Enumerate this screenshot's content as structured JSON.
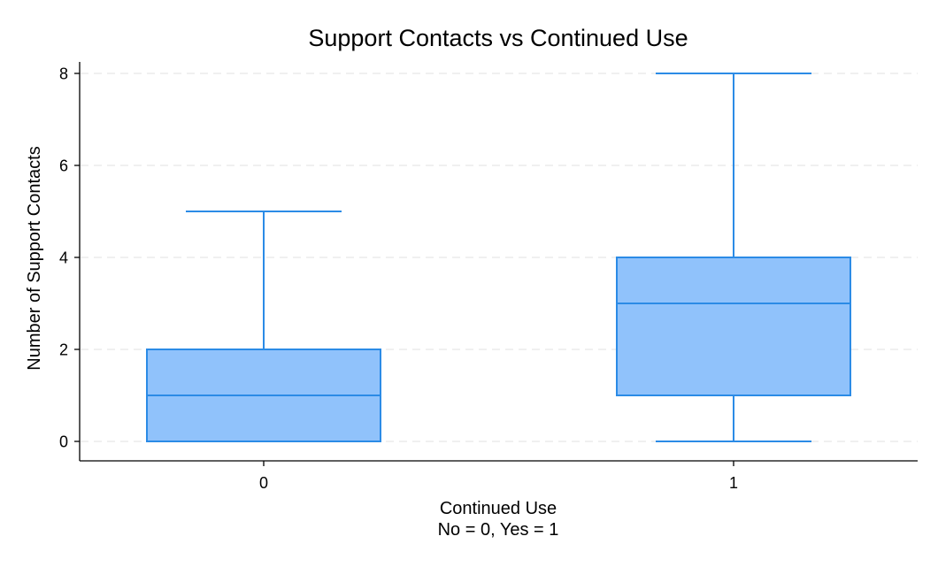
{
  "chart_data": {
    "type": "boxplot",
    "title": "Support Contacts vs Continued Use",
    "xlabel": "Continued Use",
    "xlabel_note": "No = 0, Yes = 1",
    "ylabel": "Number of Support Contacts",
    "ylim": [
      -0.4,
      8.2
    ],
    "yticks": [
      0,
      2,
      4,
      6,
      8
    ],
    "grid": true,
    "categories": [
      "0",
      "1"
    ],
    "boxes": [
      {
        "category": "0",
        "whisker_low": 0,
        "q1": 0,
        "median": 1,
        "q3": 2,
        "whisker_high": 5
      },
      {
        "category": "1",
        "whisker_low": 0,
        "q1": 1,
        "median": 3,
        "q3": 4,
        "whisker_high": 8
      }
    ],
    "colors": {
      "box_fill": "#90c2fb",
      "box_stroke": "#2b8be6",
      "grid": "#e6e6e6",
      "axis": "#000000"
    }
  }
}
